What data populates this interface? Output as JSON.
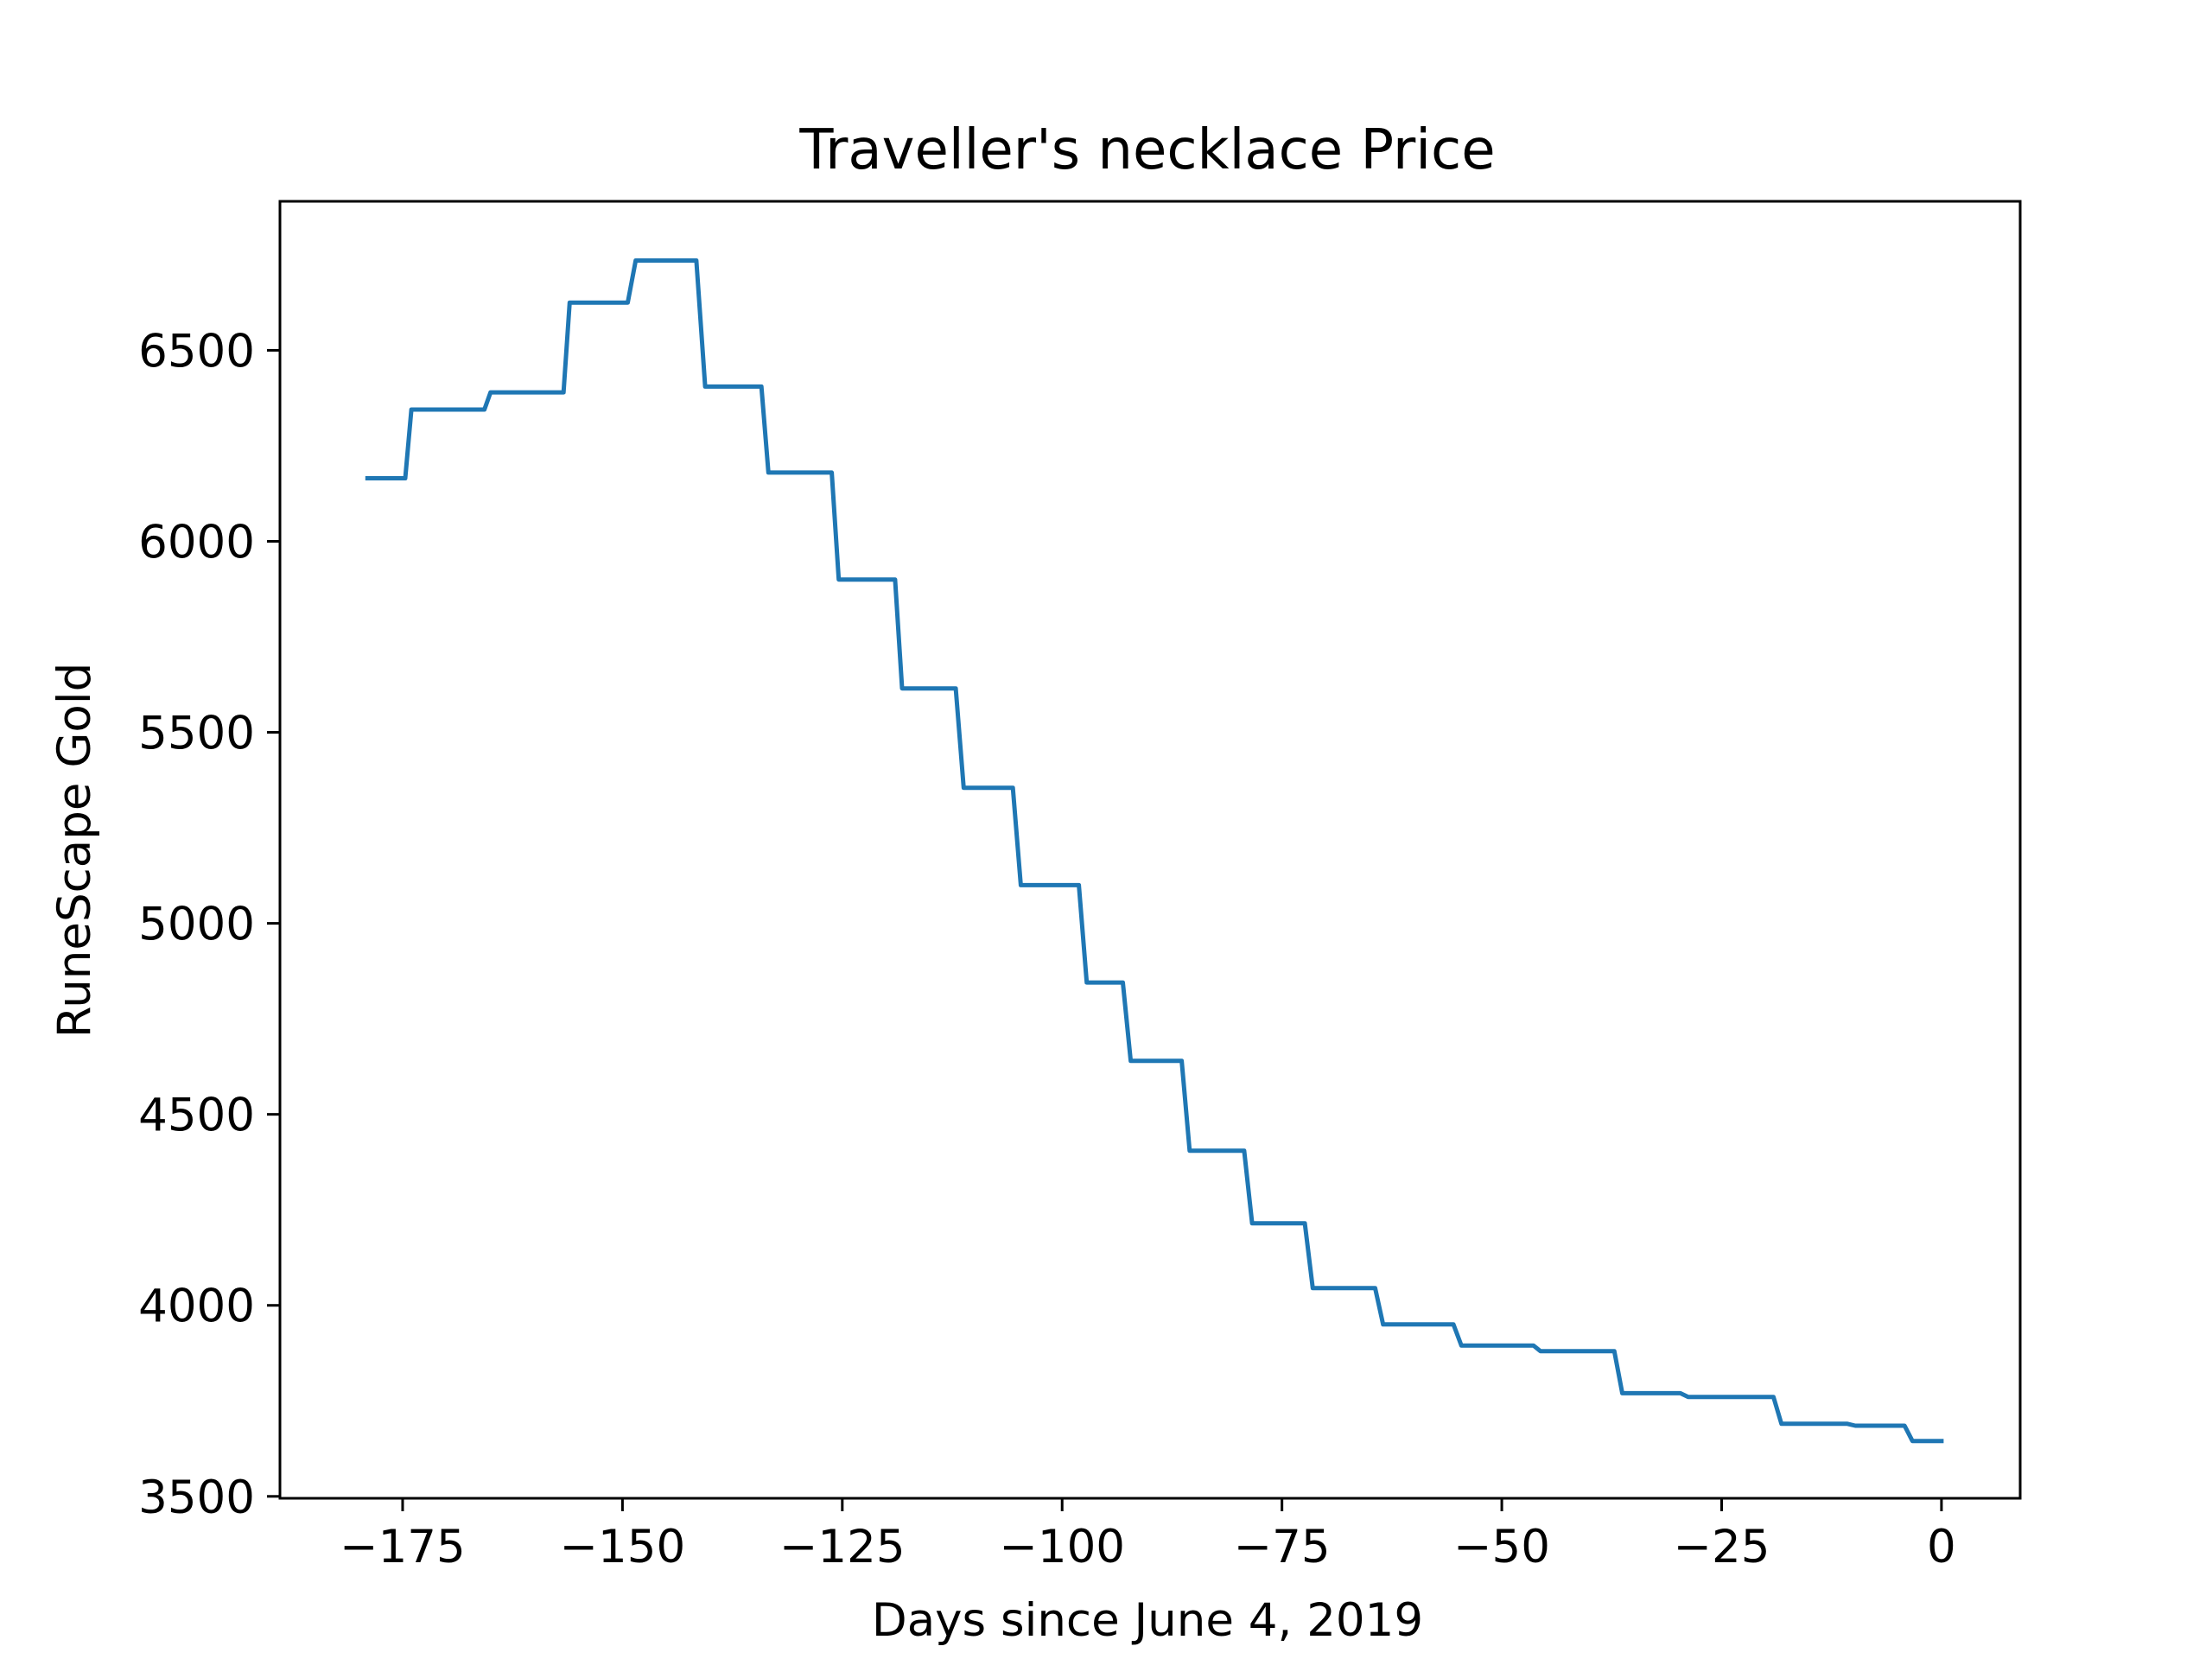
{
  "chart_data": {
    "type": "line",
    "title": "Traveller's necklace Price",
    "xlabel": "Days since June 4, 2019",
    "ylabel": "RuneScape Gold",
    "xlim": [
      -188.95,
      8.95
    ],
    "ylim": [
      3495,
      6890
    ],
    "grid": false,
    "legend": "none",
    "colors": {
      "line": "#1f77b4",
      "axes": "#000000",
      "background": "#ffffff"
    },
    "x_ticks": [
      {
        "value": -175,
        "label": "−175"
      },
      {
        "value": -150,
        "label": "−150"
      },
      {
        "value": -125,
        "label": "−125"
      },
      {
        "value": -100,
        "label": "−100"
      },
      {
        "value": -75,
        "label": "−75"
      },
      {
        "value": -50,
        "label": "−50"
      },
      {
        "value": -25,
        "label": "−25"
      },
      {
        "value": 0,
        "label": "0"
      }
    ],
    "y_ticks": [
      {
        "value": 3500,
        "label": "3500"
      },
      {
        "value": 4000,
        "label": "4000"
      },
      {
        "value": 4500,
        "label": "4500"
      },
      {
        "value": 5000,
        "label": "5000"
      },
      {
        "value": 5500,
        "label": "5500"
      },
      {
        "value": 6000,
        "label": "6000"
      },
      {
        "value": 6500,
        "label": "6500"
      }
    ],
    "series": [
      {
        "x": [
          -179,
          -174.7,
          -174,
          -165.7,
          -165,
          -156.7,
          -156,
          -149.4,
          -148.5,
          -141.6,
          -140.6,
          -134.2,
          -133.4,
          -126.2,
          -125.4,
          -119,
          -118.2,
          -112.1,
          -111.2,
          -105.6,
          -104.7,
          -98.1,
          -97.2,
          -93.1,
          -92.2,
          -86.4,
          -85.5,
          -79.3,
          -78.4,
          -72.4,
          -71.5,
          -64.4,
          -63.5,
          -55.5,
          -54.6,
          -46.4,
          -45.6,
          -37.2,
          -36.3,
          -29.7,
          -28.8,
          -19.1,
          -18.2,
          -10.7,
          -9.8,
          -4.2,
          -3.3,
          0
        ],
        "y": [
          6165,
          6165,
          6345,
          6345,
          6390,
          6390,
          6625,
          6625,
          6735,
          6735,
          6405,
          6405,
          6180,
          6180,
          5900,
          5900,
          5615,
          5615,
          5355,
          5355,
          5100,
          5100,
          4845,
          4845,
          4640,
          4640,
          4405,
          4405,
          4215,
          4215,
          4045,
          4045,
          3950,
          3950,
          3895,
          3895,
          3880,
          3880,
          3770,
          3770,
          3760,
          3760,
          3690,
          3690,
          3685,
          3685,
          3645,
          3645
        ]
      }
    ]
  }
}
